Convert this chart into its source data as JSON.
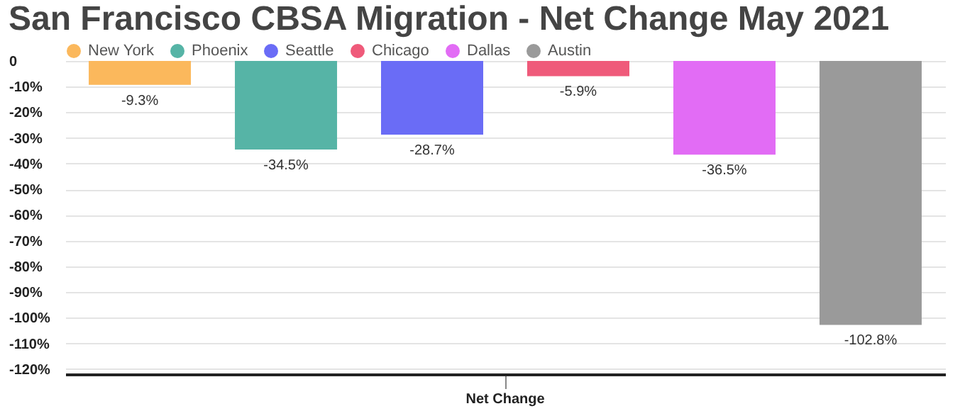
{
  "chart_data": {
    "type": "bar",
    "title": "San Francisco CBSA Migration - Net Change May 2021",
    "categories": [
      "Net Change"
    ],
    "series": [
      {
        "name": "New York",
        "color": "#fbb85c",
        "values": [
          -9.3
        ]
      },
      {
        "name": "Phoenix",
        "color": "#56b4a6",
        "values": [
          -34.5
        ]
      },
      {
        "name": "Seattle",
        "color": "#6a6cf6",
        "values": [
          -28.7
        ]
      },
      {
        "name": "Chicago",
        "color": "#ef5a7a",
        "values": [
          -5.9
        ]
      },
      {
        "name": "Dallas",
        "color": "#e26cf5",
        "values": [
          -36.5
        ]
      },
      {
        "name": "Austin",
        "color": "#9a9a9a",
        "values": [
          -102.8
        ]
      }
    ],
    "value_labels": [
      "-9.3%",
      "-34.5%",
      "-28.7%",
      "-5.9%",
      "-36.5%",
      "-102.8%"
    ],
    "ylim": [
      -122,
      0
    ],
    "yticks": [
      0,
      {
        "value": -10,
        "label": "-10%"
      },
      {
        "value": -20,
        "label": "-20%"
      },
      {
        "value": -30,
        "label": "-30%"
      },
      {
        "value": -40,
        "label": "-40%"
      },
      {
        "value": -50,
        "label": "-50%"
      },
      {
        "value": -60,
        "label": "-60%"
      },
      {
        "value": -70,
        "label": "-70%"
      },
      {
        "value": -80,
        "label": "-80%"
      },
      {
        "value": -90,
        "label": "-90%"
      },
      {
        "value": -100,
        "label": "-100%"
      },
      {
        "value": -110,
        "label": "-110%"
      },
      {
        "value": -120,
        "label": "-120%"
      }
    ],
    "grid": "y",
    "legend": "top"
  }
}
